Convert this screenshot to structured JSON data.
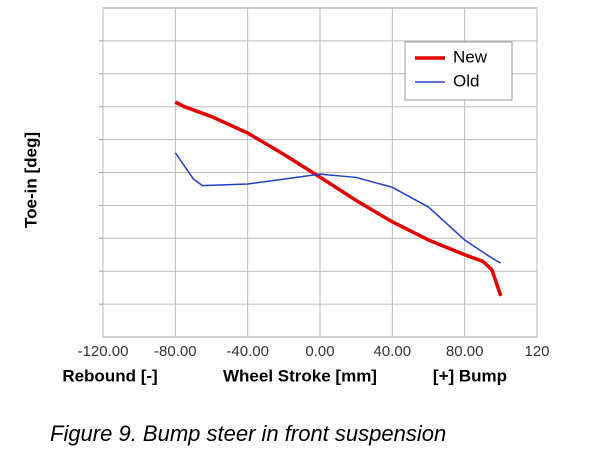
{
  "chart_data": {
    "type": "line",
    "x_label_left": "Rebound [-]",
    "x_label": "Wheel Stroke [mm]",
    "x_label_right": "[+] Bump",
    "y_label": "Toe-in [deg]",
    "caption": "Figure 9. Bump steer in front suspension",
    "series": [
      {
        "name": "New",
        "color": "#e00000",
        "width": 3.5,
        "x": [
          -80,
          -75,
          -60,
          -40,
          -20,
          0,
          20,
          40,
          60,
          80,
          90,
          95,
          100
        ],
        "values": [
          7.14,
          7.0,
          6.7,
          6.2,
          5.55,
          4.86,
          4.15,
          3.5,
          2.95,
          2.5,
          2.3,
          2.05,
          1.25
        ]
      },
      {
        "name": "Old",
        "color": "#1f3fc8",
        "width": 1.5,
        "x": [
          -80,
          -70,
          -65,
          -40,
          -20,
          0,
          20,
          40,
          60,
          80,
          95,
          100
        ],
        "values": [
          5.6,
          4.8,
          4.6,
          4.65,
          4.8,
          4.95,
          4.85,
          4.55,
          3.95,
          2.95,
          2.4,
          2.25
        ]
      }
    ],
    "xlim": [
      -120,
      120
    ],
    "xticks": [
      {
        "value": -120,
        "label": "-120.00"
      },
      {
        "value": -80,
        "label": "-80.00"
      },
      {
        "value": -40,
        "label": "-40.00"
      },
      {
        "value": 0,
        "label": "0.00"
      },
      {
        "value": 40,
        "label": "40.00"
      },
      {
        "value": 80,
        "label": "80.00"
      },
      120
    ],
    "ylim": [
      0,
      10
    ],
    "ygrid": [
      1,
      2,
      3,
      4,
      5,
      6,
      7,
      8,
      9
    ],
    "grid": true,
    "legend": "upper right"
  }
}
